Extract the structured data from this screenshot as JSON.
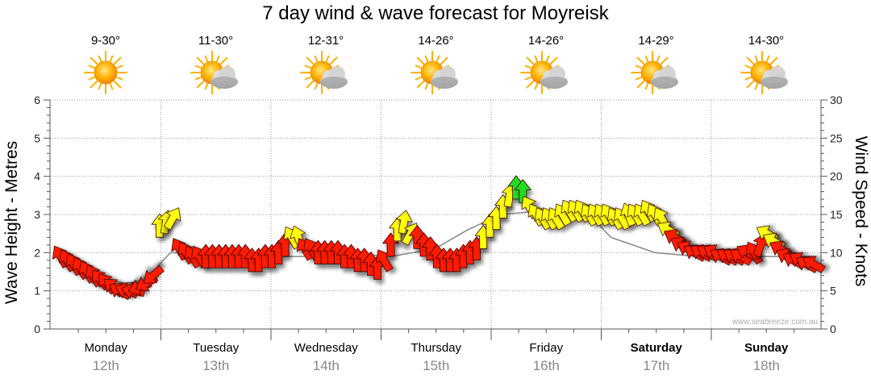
{
  "title": "7 day wind & wave forecast for Moyreisk",
  "credit": "www.seabreeze.com.au",
  "colors": {
    "red": "#ff1a00",
    "yellow": "#ffff10",
    "green": "#22dd22",
    "axis": "#555555",
    "grid": "#999999",
    "line": "#888888"
  },
  "days": [
    {
      "name": "Monday",
      "date": "12th",
      "temp": "9-30°",
      "icon": "sun-icon",
      "bold": false
    },
    {
      "name": "Tuesday",
      "date": "13th",
      "temp": "11-30°",
      "icon": "partly-cloudy-icon",
      "bold": false
    },
    {
      "name": "Wednesday",
      "date": "14th",
      "temp": "12-31°",
      "icon": "partly-cloudy-icon",
      "bold": false
    },
    {
      "name": "Thursday",
      "date": "15th",
      "temp": "14-26°",
      "icon": "partly-cloudy-icon",
      "bold": false
    },
    {
      "name": "Friday",
      "date": "16th",
      "temp": "14-26°",
      "icon": "partly-cloudy-icon",
      "bold": false
    },
    {
      "name": "Saturday",
      "date": "17th",
      "temp": "14-29°",
      "icon": "partly-cloudy-icon",
      "bold": true
    },
    {
      "name": "Sunday",
      "date": "18th",
      "temp": "14-30°",
      "icon": "partly-cloudy-icon",
      "bold": true
    }
  ],
  "chart_data": {
    "type": "line",
    "title": "7 day wind & wave forecast for Moyreisk",
    "ylabel_left": "Wave Height - Metres",
    "ylabel_right": "Wind Speed - Knots",
    "ylim_left": [
      0,
      6
    ],
    "ylim_right": [
      0,
      30
    ],
    "yticks_left": [
      0,
      1,
      2,
      3,
      4,
      5,
      6
    ],
    "yticks_right": [
      0,
      5,
      10,
      15,
      20,
      25,
      30
    ],
    "x_categories": [
      "Monday 12th",
      "Tuesday 13th",
      "Wednesday 14th",
      "Thursday 15th",
      "Friday 16th",
      "Saturday 17th",
      "Sunday 18th"
    ],
    "series": [
      {
        "kind": "wind-arrows",
        "x_day": [
          0.0,
          0.06,
          0.12,
          0.18,
          0.24,
          0.3,
          0.36,
          0.42,
          0.48,
          0.54,
          0.6,
          0.66,
          0.72,
          0.78,
          0.84,
          0.9,
          0.96,
          1.02,
          1.08,
          1.14,
          1.2,
          1.26,
          1.32,
          1.38,
          1.44,
          1.5,
          1.56,
          1.62,
          1.68,
          1.74,
          1.8,
          1.86,
          1.92,
          1.98,
          2.04,
          2.1,
          2.16,
          2.22,
          2.28,
          2.34,
          2.4,
          2.46,
          2.52,
          2.58,
          2.64,
          2.7,
          2.76,
          2.82,
          2.88,
          2.94,
          3.0,
          3.06,
          3.12,
          3.18,
          3.24,
          3.3,
          3.36,
          3.42,
          3.48,
          3.54,
          3.6,
          3.66,
          3.72,
          3.78,
          3.84,
          3.9,
          3.96,
          4.02,
          4.08,
          4.14,
          4.2,
          4.26,
          4.32,
          4.38,
          4.44,
          4.5,
          4.56,
          4.62,
          4.68,
          4.74,
          4.8,
          4.86,
          4.92,
          4.98,
          5.04,
          5.1,
          5.16,
          5.22,
          5.28,
          5.34,
          5.4,
          5.46,
          5.52,
          5.58,
          5.64,
          5.7,
          5.76,
          5.82,
          5.88,
          5.94,
          6.0,
          6.06,
          6.12,
          6.18,
          6.24,
          6.3,
          6.36,
          6.42,
          6.48,
          6.54,
          6.6,
          6.66,
          6.72,
          6.78,
          6.84
        ],
        "wind_knots": [
          9.5,
          9,
          8.5,
          8,
          7.5,
          7,
          6.5,
          6,
          5.5,
          5,
          5,
          5,
          5.5,
          6,
          7,
          13.5,
          14,
          14.5,
          10.5,
          10,
          9.5,
          9.5,
          9.5,
          9.5,
          9.5,
          9.5,
          9.5,
          9.5,
          9.5,
          9,
          9,
          9.5,
          9.5,
          10,
          11,
          12,
          12,
          10.5,
          10.5,
          10,
          10,
          10,
          10,
          9.5,
          9.5,
          9,
          9,
          8.5,
          8,
          9,
          11,
          13,
          14,
          12.5,
          12,
          11,
          10.5,
          9.5,
          9,
          9,
          9,
          9.5,
          10,
          10.5,
          12,
          13.5,
          14.5,
          16,
          17.5,
          18.5,
          18,
          16,
          15,
          14.5,
          14.5,
          14.5,
          15,
          15.5,
          15.5,
          15.5,
          15,
          15,
          15,
          15,
          14.5,
          14.5,
          15,
          15,
          15,
          15.5,
          15,
          14.5,
          13,
          12,
          11,
          10.5,
          10,
          10,
          10,
          10,
          9.5,
          9.5,
          9.5,
          9.5,
          10,
          10,
          11,
          12.5,
          11.5,
          10.5,
          9.5,
          9,
          9,
          8.5,
          8.5
        ],
        "direction_deg": [
          330,
          330,
          330,
          330,
          330,
          330,
          320,
          320,
          310,
          300,
          290,
          280,
          250,
          240,
          230,
          0,
          10,
          30,
          330,
          330,
          330,
          330,
          0,
          0,
          0,
          0,
          0,
          0,
          0,
          0,
          0,
          0,
          0,
          0,
          0,
          330,
          340,
          330,
          330,
          0,
          0,
          0,
          0,
          0,
          0,
          0,
          0,
          0,
          0,
          330,
          0,
          0,
          10,
          30,
          0,
          0,
          0,
          0,
          0,
          0,
          0,
          0,
          0,
          0,
          0,
          0,
          0,
          0,
          10,
          0,
          0,
          330,
          330,
          330,
          330,
          330,
          330,
          330,
          330,
          330,
          330,
          330,
          330,
          330,
          330,
          330,
          340,
          330,
          330,
          330,
          330,
          330,
          300,
          300,
          300,
          300,
          300,
          300,
          300,
          300,
          300,
          300,
          300,
          300,
          300,
          330,
          20,
          300,
          300,
          300,
          300,
          300,
          300,
          300,
          300
        ],
        "category": [
          "red",
          "red",
          "red",
          "red",
          "red",
          "red",
          "red",
          "red",
          "red",
          "red",
          "red",
          "red",
          "red",
          "red",
          "red",
          "yellow",
          "yellow",
          "yellow",
          "red",
          "red",
          "red",
          "red",
          "red",
          "red",
          "red",
          "red",
          "red",
          "red",
          "red",
          "red",
          "red",
          "red",
          "red",
          "red",
          "red",
          "yellow",
          "yellow",
          "red",
          "red",
          "red",
          "red",
          "red",
          "red",
          "red",
          "red",
          "red",
          "red",
          "red",
          "red",
          "red",
          "red",
          "yellow",
          "yellow",
          "yellow",
          "red",
          "red",
          "red",
          "red",
          "red",
          "red",
          "red",
          "red",
          "red",
          "red",
          "yellow",
          "yellow",
          "yellow",
          "yellow",
          "yellow",
          "green",
          "green",
          "yellow",
          "yellow",
          "yellow",
          "yellow",
          "yellow",
          "yellow",
          "yellow",
          "yellow",
          "yellow",
          "yellow",
          "yellow",
          "yellow",
          "yellow",
          "yellow",
          "yellow",
          "yellow",
          "yellow",
          "yellow",
          "yellow",
          "yellow",
          "yellow",
          "yellow",
          "red",
          "red",
          "red",
          "red",
          "red",
          "red",
          "red",
          "red",
          "red",
          "red",
          "red",
          "red",
          "red",
          "red",
          "yellow",
          "yellow",
          "red",
          "red",
          "red",
          "red",
          "red",
          "red"
        ]
      },
      {
        "kind": "wave-height-line",
        "x_day": [
          0.0,
          0.2,
          0.4,
          0.6,
          0.8,
          0.9,
          1.0,
          1.4,
          1.8,
          2.2,
          2.6,
          3.0,
          3.4,
          3.7,
          4.0,
          4.4,
          4.8,
          5.0,
          5.4,
          5.8,
          6.2,
          6.6,
          6.85
        ],
        "wave_m": [
          1.8,
          1.6,
          1.3,
          1.2,
          1.3,
          1.7,
          2.0,
          2.0,
          1.9,
          1.9,
          2.0,
          1.9,
          2.1,
          2.6,
          3.0,
          3.1,
          3.0,
          2.4,
          2.0,
          1.9,
          1.9,
          1.9,
          1.9
        ]
      }
    ]
  }
}
